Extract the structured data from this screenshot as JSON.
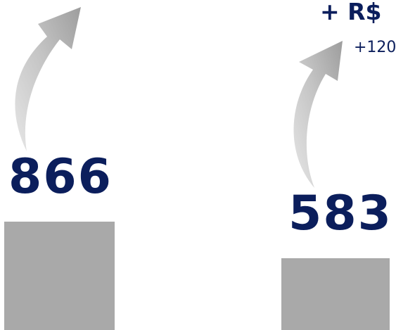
{
  "colors": {
    "text_navy": "#0b1e5c",
    "bar_gray": "#a9a9a9",
    "arrow_light": "#e6e6e6",
    "arrow_mid": "#c3c3c3",
    "arrow_dark": "#9d9d9d"
  },
  "left_column": {
    "value": "866",
    "icon": "curved-arrow-up-right-icon"
  },
  "right_column": {
    "headline": "+ R$",
    "subline": "+120",
    "value": "583",
    "icon": "curved-arrow-up-right-icon"
  }
}
